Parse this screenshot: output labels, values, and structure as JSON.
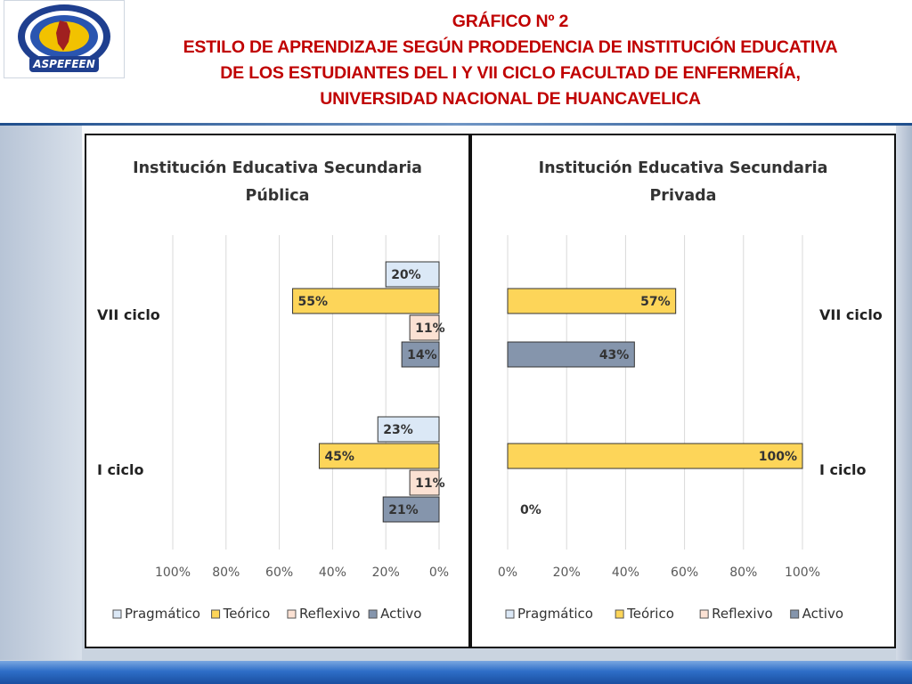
{
  "header": {
    "logo_label": "ASPEFEEN",
    "title_lines": [
      "GRÁFICO Nº 2",
      "ESTILO DE APRENDIZAJE SEGÚN PRODEDENCIA DE INSTITUCIÓN EDUCATIVA",
      "DE LOS ESTUDIANTES DEL I Y VII CICLO FACULTAD DE ENFERMERÍA,",
      "UNIVERSIDAD NACIONAL DE HUANCAVELICA"
    ]
  },
  "colors": {
    "Pragmático": "#dbe8f6",
    "Teórico": "#fdd559",
    "Reflexivo": "#fbe1d3",
    "Activo": "#8595ac",
    "title_red": "#c00000"
  },
  "chart_data": [
    {
      "type": "bar",
      "orientation": "horizontal",
      "direction": "reversed",
      "title_lines": [
        "Institución Educativa Secundaria",
        "Pública"
      ],
      "categories": [
        "VII ciclo",
        "I ciclo"
      ],
      "series": [
        {
          "name": "Pragmático",
          "values": [
            20,
            23
          ]
        },
        {
          "name": "Teórico",
          "values": [
            55,
            45
          ]
        },
        {
          "name": "Reflexivo",
          "values": [
            11,
            11
          ]
        },
        {
          "name": "Activo",
          "values": [
            14,
            21
          ]
        }
      ],
      "xlim": [
        0,
        100
      ],
      "xticks": [
        "100%",
        "80%",
        "60%",
        "40%",
        "20%",
        "0%"
      ],
      "value_suffix": "%",
      "legend": [
        "Pragmático",
        "Teórico",
        "Reflexivo",
        "Activo"
      ],
      "legend_position": "bottom"
    },
    {
      "type": "bar",
      "orientation": "horizontal",
      "direction": "normal",
      "title_lines": [
        "Institución Educativa Secundaria",
        "Privada"
      ],
      "categories": [
        "VII ciclo",
        "I ciclo"
      ],
      "series": [
        {
          "name": "Pragmático",
          "values": [
            null,
            null
          ]
        },
        {
          "name": "Teórico",
          "values": [
            57,
            100
          ]
        },
        {
          "name": "Reflexivo",
          "values": [
            null,
            null
          ]
        },
        {
          "name": "Activo",
          "values": [
            43,
            0
          ]
        }
      ],
      "xlim": [
        0,
        100
      ],
      "xticks": [
        "0%",
        "20%",
        "40%",
        "60%",
        "80%",
        "100%"
      ],
      "value_suffix": "%",
      "legend": [
        "Pragmático",
        "Teórico",
        "Reflexivo",
        "Activo"
      ],
      "legend_position": "bottom"
    }
  ]
}
